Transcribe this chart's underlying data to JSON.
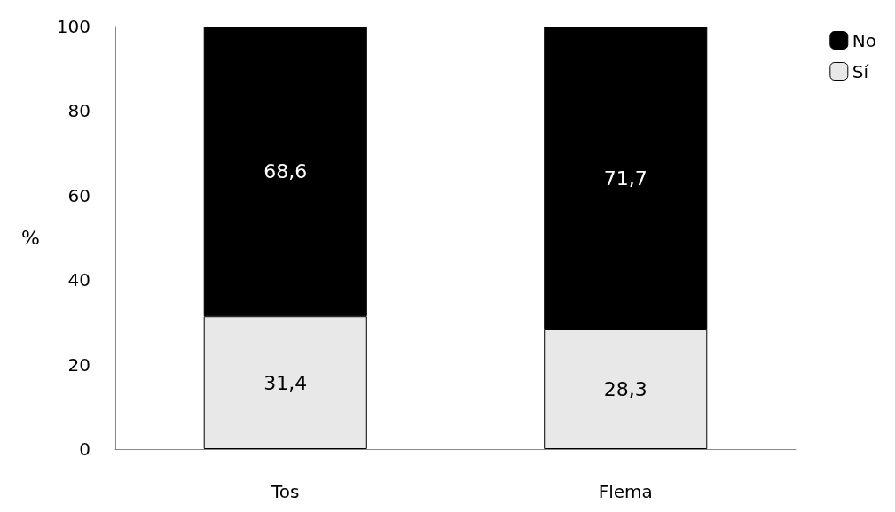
{
  "chart_data": {
    "type": "bar",
    "stacked": true,
    "categories": [
      "Tos",
      "Flema"
    ],
    "ylabel": "%",
    "ylim": [
      0,
      100
    ],
    "yticks": [
      0,
      20,
      40,
      60,
      80,
      100
    ],
    "grid": false,
    "legend": "top right",
    "series": [
      {
        "name": "Sí",
        "color": "#e8e8e8",
        "values": [
          31.4,
          28.3
        ],
        "value_labels": [
          "31,4",
          "28,3"
        ]
      },
      {
        "name": "No",
        "color": "#000000",
        "values": [
          68.6,
          71.7
        ],
        "value_labels": [
          "68,6",
          "71,7"
        ]
      }
    ]
  }
}
